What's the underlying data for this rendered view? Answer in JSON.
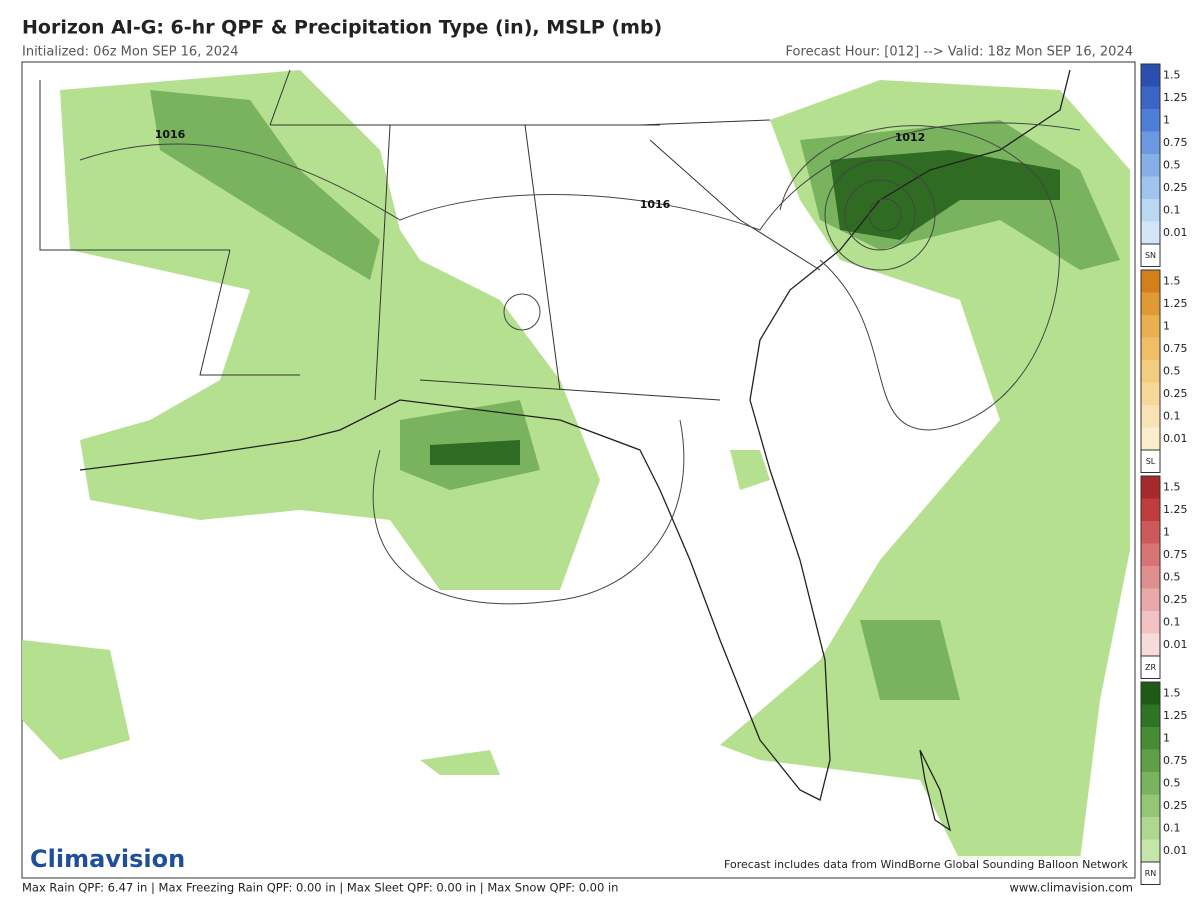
{
  "header": {
    "title": "Horizon AI-G: 6-hr QPF & Precipitation Type (in), MSLP (mb)",
    "initialized": "Initialized: 06z Mon SEP 16, 2024",
    "valid": "Forecast Hour: [012] --> Valid: 18z Mon SEP 16, 2024"
  },
  "map": {
    "isobar_labels": [
      "1016",
      "1012",
      "1016"
    ],
    "logo": "Climavision",
    "credit": "Forecast includes data from WindBorne Global Sounding Balloon Network"
  },
  "legend": {
    "levels": [
      1.5,
      1.25,
      1,
      0.75,
      0.5,
      0.25,
      0.1,
      0.01
    ],
    "scales": [
      {
        "code": "SN",
        "colors": [
          "#2a4fae",
          "#3c66c4",
          "#4d7fd6",
          "#6b98e0",
          "#86afe8",
          "#a1c4ef",
          "#bad7f4",
          "#d2e6f8"
        ]
      },
      {
        "code": "SL",
        "colors": [
          "#d4801a",
          "#e09a35",
          "#e9b04f",
          "#efbf67",
          "#f3cc80",
          "#f6d899",
          "#f9e3b3",
          "#fbeecb"
        ]
      },
      {
        "code": "ZR",
        "colors": [
          "#a52a2a",
          "#be3c3c",
          "#cc5a5a",
          "#d77575",
          "#e08f8f",
          "#e9a9a9",
          "#f1c3c3",
          "#f7dada"
        ]
      },
      {
        "code": "RN",
        "colors": [
          "#1f5a17",
          "#2f7324",
          "#478c35",
          "#5f9f47",
          "#79b35e",
          "#93c675",
          "#aed88e",
          "#c6e6a9"
        ]
      }
    ]
  },
  "footer": {
    "stats": "Max Rain QPF: 6.47 in  |  Max Freezing Rain QPF: 0.00 in  |  Max Sleet QPF: 0.00 in  |  Max Snow QPF: 0.00 in",
    "website": "www.climavision.com"
  }
}
